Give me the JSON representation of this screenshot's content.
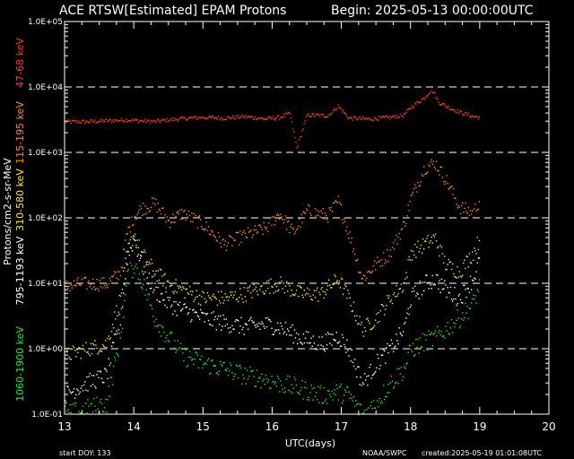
{
  "chart_data": {
    "type": "scatter",
    "title": "ACE RTSW[Estimated] EPAM Protons",
    "begin_text": "Begin: 2025-05-13 00:00:00UTC",
    "xlabel": "UTC(days)",
    "ylabel": "Protons/cm2-s-sr-MeV",
    "xlim": [
      13,
      20
    ],
    "ylim": [
      0.1,
      100000
    ],
    "yscale": "log",
    "x_ticks": [
      "13",
      "14",
      "15",
      "16",
      "17",
      "18",
      "19",
      "20"
    ],
    "y_ticks": [
      "1.0E-01",
      "1.0E+00",
      "1.0E+01",
      "1.0E+02",
      "1.0E+03",
      "1.0E+04",
      "1.0E+05"
    ],
    "grid": "dashed horizontal at decades",
    "legend": "left side, vertical labels",
    "series": [
      {
        "name": "47-68 keV",
        "color": "#ff3b1f",
        "x": [
          13.0,
          13.3,
          13.6,
          13.9,
          14.1,
          14.3,
          14.5,
          14.8,
          15.0,
          15.3,
          15.6,
          15.9,
          16.1,
          16.25,
          16.35,
          16.5,
          16.8,
          16.95,
          17.1,
          17.4,
          17.7,
          17.9,
          18.0,
          18.2,
          18.3,
          18.4,
          18.5,
          18.7,
          18.9,
          19.0
        ],
        "y": [
          3000,
          3000,
          3100,
          3200,
          3100,
          3000,
          3200,
          3400,
          3500,
          3400,
          3600,
          3300,
          3500,
          4000,
          1200,
          3800,
          3700,
          5200,
          3400,
          3300,
          3500,
          3800,
          5000,
          7000,
          9500,
          6000,
          5200,
          4200,
          3600,
          3500
        ]
      },
      {
        "name": "115-195 keV",
        "color": "#ff8c1a",
        "x": [
          13.0,
          13.2,
          13.4,
          13.6,
          13.8,
          13.9,
          14.0,
          14.1,
          14.3,
          14.5,
          14.7,
          15.0,
          15.3,
          15.6,
          15.9,
          16.1,
          16.3,
          16.5,
          16.8,
          16.95,
          17.1,
          17.3,
          17.5,
          17.7,
          17.9,
          18.0,
          18.2,
          18.35,
          18.5,
          18.7,
          18.9,
          19.0
        ],
        "y": [
          9,
          10,
          10,
          10,
          15,
          60,
          110,
          140,
          170,
          90,
          120,
          80,
          40,
          55,
          70,
          120,
          60,
          130,
          110,
          180,
          60,
          12,
          20,
          30,
          80,
          200,
          600,
          700,
          400,
          150,
          120,
          200
        ]
      },
      {
        "name": "310-580 keV",
        "color": "#ffee22",
        "x": [
          13.0,
          13.3,
          13.6,
          13.8,
          13.9,
          14.0,
          14.1,
          14.3,
          14.5,
          14.7,
          15.0,
          15.3,
          15.6,
          15.9,
          16.1,
          16.4,
          16.7,
          16.95,
          17.1,
          17.3,
          17.5,
          17.7,
          17.9,
          18.0,
          18.2,
          18.35,
          18.5,
          18.7,
          18.9,
          19.0
        ],
        "y": [
          0.8,
          1.0,
          1.2,
          6,
          30,
          60,
          30,
          15,
          10,
          8,
          6,
          6,
          7,
          9,
          10,
          7,
          7,
          12,
          6,
          2,
          3,
          6,
          10,
          30,
          40,
          50,
          20,
          15,
          30,
          50
        ]
      },
      {
        "name": "795-1193 keV",
        "color": "#ffffff",
        "x": [
          13.0,
          13.3,
          13.6,
          13.8,
          13.9,
          14.0,
          14.1,
          14.3,
          14.5,
          14.7,
          15.0,
          15.3,
          15.6,
          15.9,
          16.1,
          16.4,
          16.7,
          16.95,
          17.1,
          17.3,
          17.5,
          17.7,
          17.9,
          18.0,
          18.2,
          18.35,
          18.5,
          18.7,
          18.9,
          19.0
        ],
        "y": [
          0.2,
          0.3,
          0.4,
          3,
          25,
          50,
          20,
          8,
          5,
          4,
          3,
          2.5,
          2.2,
          2.4,
          2.2,
          1.5,
          1.2,
          1.6,
          1.0,
          0.3,
          0.6,
          1.0,
          2.0,
          6,
          10,
          12,
          8,
          6,
          12,
          25
        ]
      },
      {
        "name": "1060-1900 keV",
        "color": "#22ee22",
        "x": [
          13.0,
          13.3,
          13.6,
          13.8,
          13.9,
          14.0,
          14.1,
          14.3,
          14.5,
          14.7,
          15.0,
          15.3,
          15.6,
          15.9,
          16.1,
          16.4,
          16.7,
          16.95,
          17.1,
          17.3,
          17.5,
          17.7,
          17.9,
          18.0,
          18.2,
          18.35,
          18.5,
          18.7,
          18.9,
          19.0
        ],
        "y": [
          0.1,
          0.12,
          0.15,
          1.5,
          12,
          20,
          12,
          3,
          1.5,
          0.8,
          0.6,
          0.5,
          0.4,
          0.35,
          0.3,
          0.25,
          0.2,
          0.22,
          0.2,
          0.1,
          0.15,
          0.3,
          0.5,
          1.0,
          1.3,
          1.5,
          2.0,
          3.0,
          5.0,
          10
        ]
      }
    ]
  },
  "footer": {
    "start_doy": "start DOY:  133",
    "source": "NOAA/SWPC",
    "created": "created:2025-05-19 01:01:08UTC"
  }
}
